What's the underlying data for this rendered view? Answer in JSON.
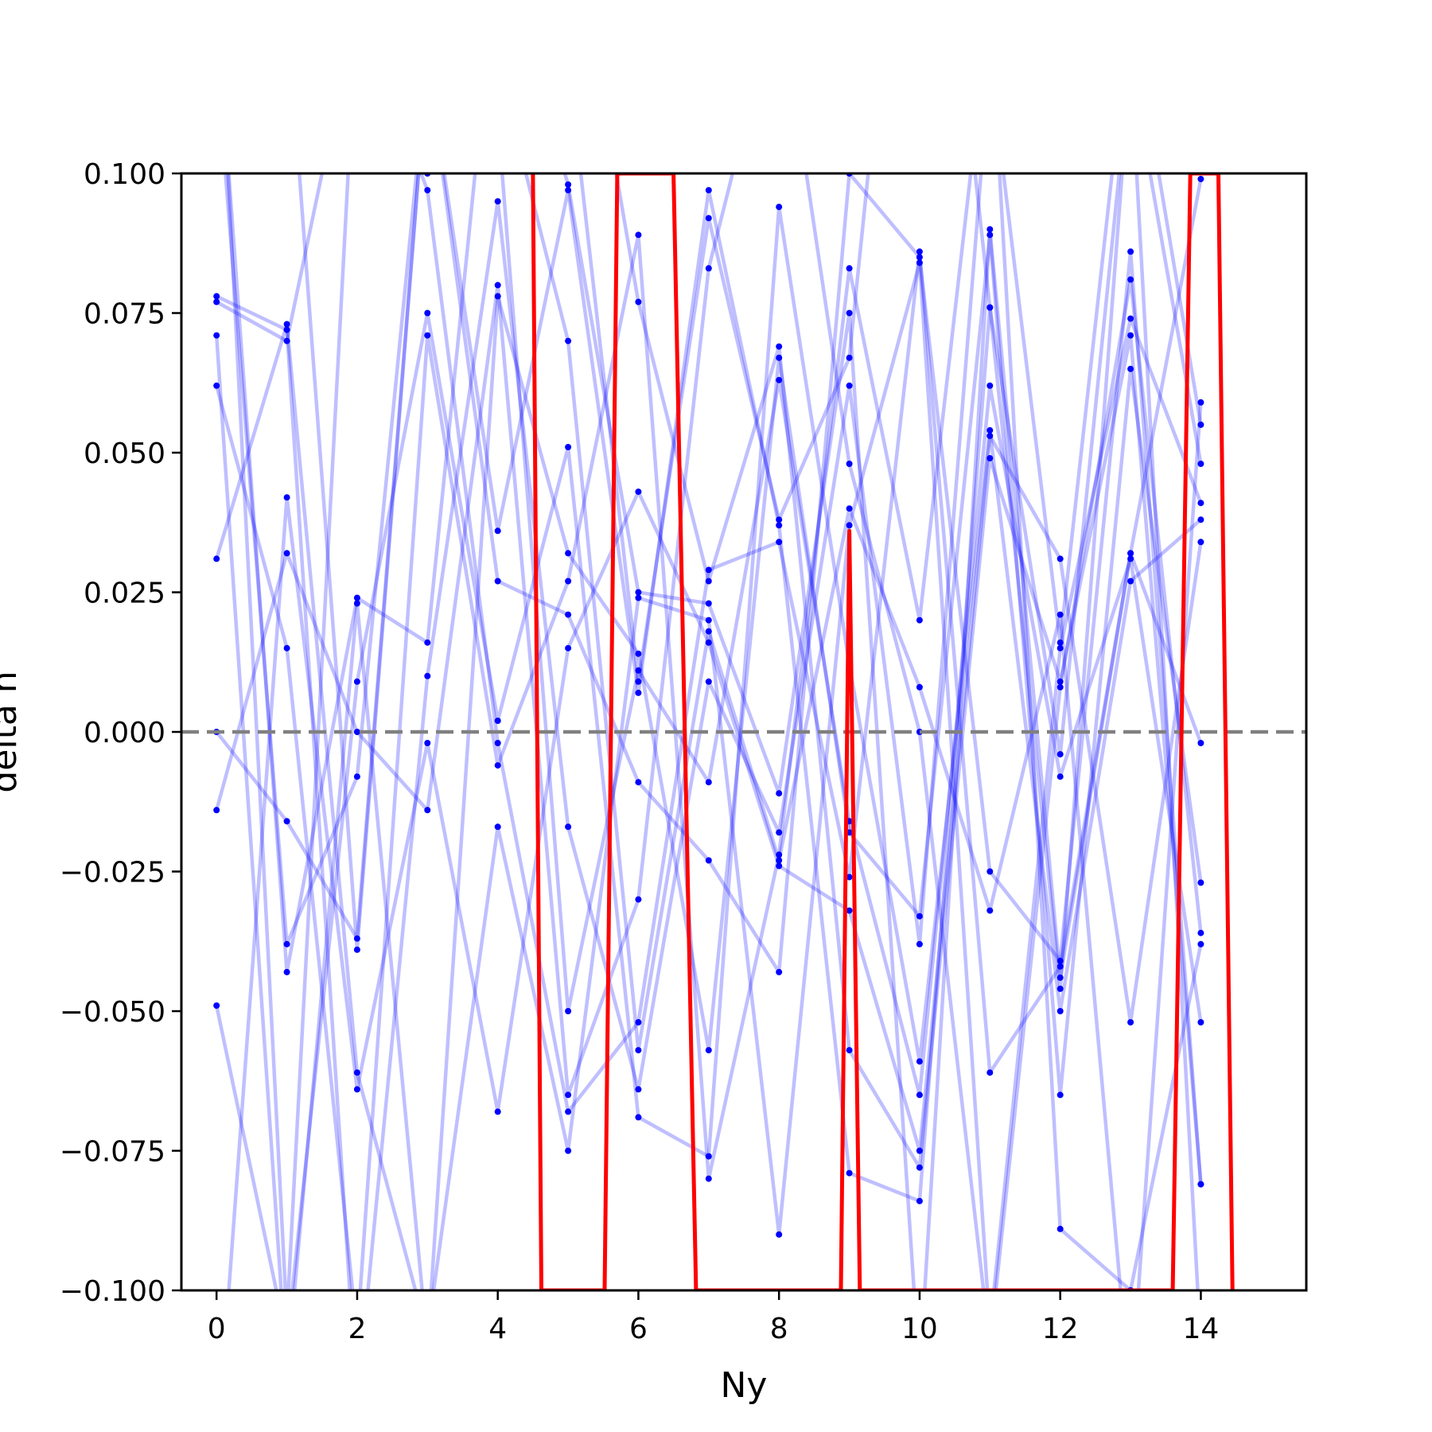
{
  "chart_data": {
    "type": "line",
    "title": "",
    "xlabel": "Ny",
    "ylabel": "delta n",
    "xlim": [
      -0.5,
      15.5
    ],
    "ylim": [
      -0.1,
      0.1
    ],
    "x_ticks": [
      0,
      2,
      4,
      6,
      8,
      10,
      12,
      14
    ],
    "y_ticks": [
      0.1,
      0.075,
      0.05,
      0.025,
      0.0,
      -0.025,
      -0.05,
      -0.075,
      -0.1
    ],
    "y_tick_labels": [
      "0.100",
      "0.075",
      "0.050",
      "0.025",
      "0.000",
      "−0.025",
      "−0.050",
      "−0.075",
      "−0.100"
    ],
    "x_tick_labels": [
      "0",
      "2",
      "4",
      "6",
      "8",
      "10",
      "12",
      "14"
    ],
    "grid": false,
    "legend": "none",
    "reference_line": {
      "y": 0.0,
      "style": "dashed",
      "color": "#808080"
    },
    "colors": {
      "trajectories": "#0000ff",
      "highlight": "#ff0000",
      "reference": "#808080"
    },
    "highlight_series": {
      "x": [
        4.5,
        4.62,
        5.52,
        5.7,
        6.5,
        6.82,
        8.88,
        9.0,
        9.15,
        13.6,
        13.85,
        14.25,
        14.45
      ],
      "y": [
        0.1,
        -0.1,
        -0.1,
        0.1,
        0.1,
        -0.1,
        -0.1,
        0.036,
        -0.1,
        -0.1,
        0.1,
        0.1,
        -0.1
      ]
    },
    "trajectories": [
      [
        0.078,
        0.072,
        -0.12,
        0.01,
        0.095,
        -0.017,
        -0.064,
        0.009,
        -0.018,
        0.062,
        -0.038,
        0.12,
        0.016,
        0.13,
        0.055
      ],
      [
        0.077,
        0.07,
        0.13,
        0.097,
        -0.002,
        -0.068,
        -0.052,
        0.029,
        0.034,
        -0.026,
        0.086,
        -0.061,
        -0.042,
        0.032,
        0.099
      ],
      [
        0.071,
        -0.115,
        0.023,
        -0.11,
        0.078,
        0.032,
        0.014,
        -0.057,
        0.067,
        -0.018,
        -0.033,
        0.089,
        -0.065,
        0.065,
        -0.027
      ],
      [
        0.062,
        0.015,
        -0.108,
        0.071,
        -0.006,
        0.027,
        0.089,
        -0.08,
        -0.022,
        0.083,
        0.02,
        0.13,
        -0.089,
        -0.1,
        -0.038
      ],
      [
        0.031,
        0.073,
        -0.061,
        -0.108,
        -0.017,
        -0.075,
        0.024,
        0.02,
        -0.09,
        0.037,
        0.084,
        -0.107,
        0.015,
        0.074,
        0.041
      ],
      [
        0.0,
        -0.016,
        -0.037,
        0.12,
        0.036,
        0.097,
        0.007,
        0.097,
        0.037,
        -0.079,
        -0.084,
        0.076,
        -0.004,
        0.12,
        0.048
      ],
      [
        -0.014,
        0.032,
        0.0,
        -0.014,
        0.08,
        -0.065,
        -0.03,
        0.083,
        0.133,
        0.048,
        0.0,
        -0.11,
        0.008,
        0.081,
        -0.036
      ],
      [
        -0.049,
        -0.109,
        0.009,
        0.075,
        0.002,
        0.051,
        -0.069,
        -0.076,
        0.094,
        0.012,
        -0.059,
        0.054,
        -0.05,
        0.027,
        0.038
      ],
      [
        -0.13,
        0.042,
        -0.064,
        -0.002,
        -0.068,
        0.015,
        0.043,
        0.016,
        -0.024,
        -0.032,
        -0.075,
        0.053,
        0.031,
        -0.052,
        0.034
      ],
      [
        0.12,
        -0.038,
        -0.008,
        0.12,
        0.027,
        0.021,
        -0.009,
        -0.023,
        -0.043,
        0.1,
        0.085,
        -0.025,
        -0.041,
        0.086,
        -0.081
      ],
      [
        0.13,
        -0.043,
        0.024,
        0.016,
        0.14,
        0.098,
        0.025,
        0.023,
        -0.011,
        0.075,
        -0.115,
        0.09,
        -0.044,
        0.032,
        -0.002
      ],
      [
        0.12,
        0.13,
        -0.039,
        0.12,
        0.11,
        -0.05,
        0.011,
        -0.009,
        0.063,
        -0.016,
        -0.065,
        0.062,
        -0.008,
        0.031,
        -0.052
      ],
      [
        0.14,
        -0.105,
        0.13,
        0.1,
        0.12,
        0.07,
        -0.057,
        0.018,
        -0.023,
        0.04,
        0.008,
        -0.032,
        0.021,
        -0.12,
        0.059
      ],
      [
        0.12,
        0.13,
        0.11,
        0.13,
        0.13,
        0.15,
        0.077,
        0.027,
        0.069,
        -0.057,
        -0.078,
        0.049,
        0.009,
        0.071,
        -0.081
      ],
      [
        0.13,
        0.14,
        0.14,
        0.12,
        0.13,
        0.12,
        0.009,
        0.092,
        0.038,
        0.067,
        0.19,
        0.076,
        -0.046,
        0.12,
        -0.11
      ]
    ]
  }
}
